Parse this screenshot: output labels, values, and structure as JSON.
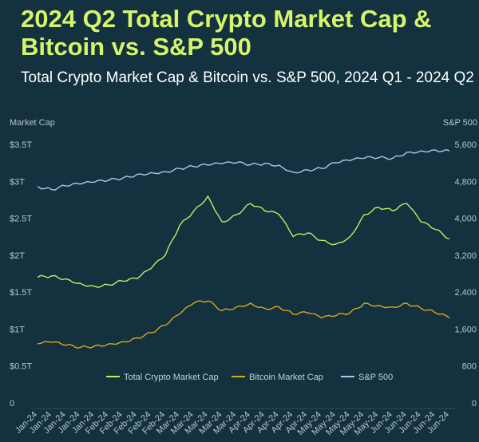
{
  "title": "2024 Q2 Total Crypto Market Cap & Bitcoin vs. S&P 500",
  "subtitle": "Total Crypto Market Cap & Bitcoin vs. S&P 500, 2024 Q1 - 2024 Q2",
  "chart_data": {
    "type": "line",
    "title": "2024 Q2 Total Crypto Market Cap & Bitcoin vs. S&P 500",
    "subtitle": "Total Crypto Market Cap & Bitcoin vs. S&P 500, 2024 Q1 - 2024 Q2",
    "ylabel_left": "Market Cap",
    "ylabel_right": "S&P 500",
    "ylim_left": [
      0,
      3.5
    ],
    "ylim_right": [
      0,
      5600
    ],
    "left_ticks": [
      "0",
      "$0.5T",
      "$1T",
      "$1.5T",
      "$2T",
      "$2.5T",
      "$3T",
      "$3.5T"
    ],
    "right_ticks": [
      "0",
      "800",
      "1,600",
      "2,400",
      "3,200",
      "4,000",
      "4,800",
      "5,600"
    ],
    "categories": [
      "Jan-24",
      "Jan-24",
      "Jan-24",
      "Jan-24",
      "Jan-24",
      "Feb-24",
      "Feb-24",
      "Feb-24",
      "Feb-24",
      "Feb-24",
      "Mar-24",
      "Mar-24",
      "Mar-24",
      "Mar-24",
      "Mar-24",
      "Apr-24",
      "Apr-24",
      "Apr-24",
      "Apr-24",
      "Apr-24",
      "May-24",
      "May-24",
      "May-24",
      "May-24",
      "May-24",
      "Jun-24",
      "Jun-24",
      "Jun-24",
      "Jun-24",
      "Jun-24"
    ],
    "grid": false,
    "legend": "bottom",
    "series": [
      {
        "name": "Total Crypto Market Cap",
        "axis": "left",
        "unit": "T",
        "color": "#c5ec5f",
        "values": [
          1.7,
          1.72,
          1.68,
          1.62,
          1.58,
          1.6,
          1.65,
          1.68,
          1.82,
          2.0,
          2.4,
          2.6,
          2.8,
          2.45,
          2.55,
          2.7,
          2.6,
          2.55,
          2.25,
          2.3,
          2.2,
          2.15,
          2.25,
          2.55,
          2.65,
          2.6,
          2.7,
          2.45,
          2.35,
          2.22
        ]
      },
      {
        "name": "Bitcoin Market Cap",
        "axis": "left",
        "unit": "T",
        "color": "#d9a81c",
        "values": [
          0.8,
          0.82,
          0.78,
          0.75,
          0.77,
          0.8,
          0.83,
          0.88,
          0.95,
          1.05,
          1.2,
          1.35,
          1.38,
          1.25,
          1.3,
          1.35,
          1.28,
          1.3,
          1.2,
          1.22,
          1.15,
          1.18,
          1.22,
          1.35,
          1.32,
          1.3,
          1.35,
          1.28,
          1.22,
          1.15
        ]
      },
      {
        "name": "S&P 500",
        "axis": "right",
        "color": "#b3c3e8",
        "values": [
          4690,
          4620,
          4700,
          4740,
          4780,
          4820,
          4870,
          4950,
          4990,
          5010,
          5080,
          5120,
          5150,
          5180,
          5200,
          5160,
          5190,
          5150,
          5000,
          5050,
          5080,
          5200,
          5250,
          5300,
          5310,
          5300,
          5430,
          5460,
          5480,
          5460
        ]
      }
    ]
  }
}
